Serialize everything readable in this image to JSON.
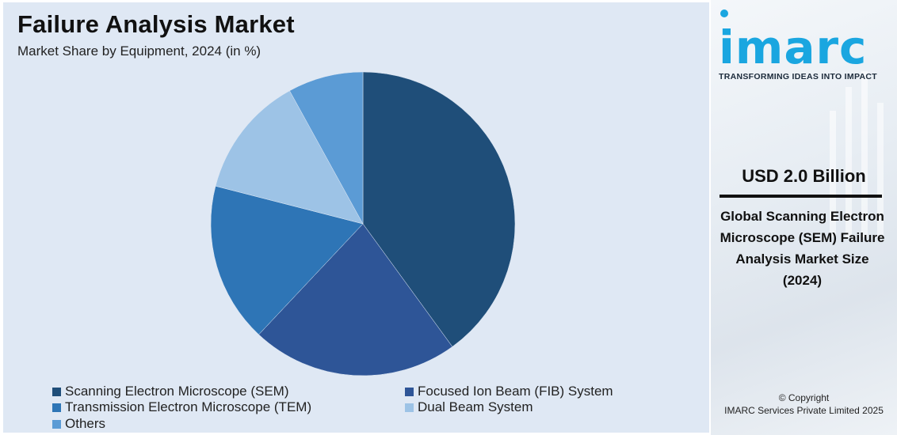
{
  "header": {
    "title": "Failure Analysis Market",
    "subtitle": "Market Share by Equipment, 2024 (in %)"
  },
  "chart_data": {
    "type": "pie",
    "title": "Failure Analysis Market",
    "subtitle": "Market Share by Equipment, 2024 (in %)",
    "categories": [
      "Scanning Electron Microscope (SEM)",
      "Focused Ion Beam (FIB) System",
      "Transmission Electron Microscope (TEM)",
      "Dual Beam System",
      "Others"
    ],
    "values": [
      40,
      22,
      17,
      13,
      8
    ],
    "colors": [
      "#1f4e79",
      "#2e5597",
      "#2e75b6",
      "#9dc3e6",
      "#5b9bd5"
    ],
    "legend_position": "bottom"
  },
  "sidebar": {
    "brand": "imarc",
    "tagline": "TRANSFORMING IDEAS INTO IMPACT",
    "value": "USD 2.0 Billion",
    "description": "Global Scanning Electron Microscope (SEM) Failure Analysis Market Size (2024)",
    "copyright": "© Copyright",
    "company": "IMARC Services Private Limited 2025"
  }
}
